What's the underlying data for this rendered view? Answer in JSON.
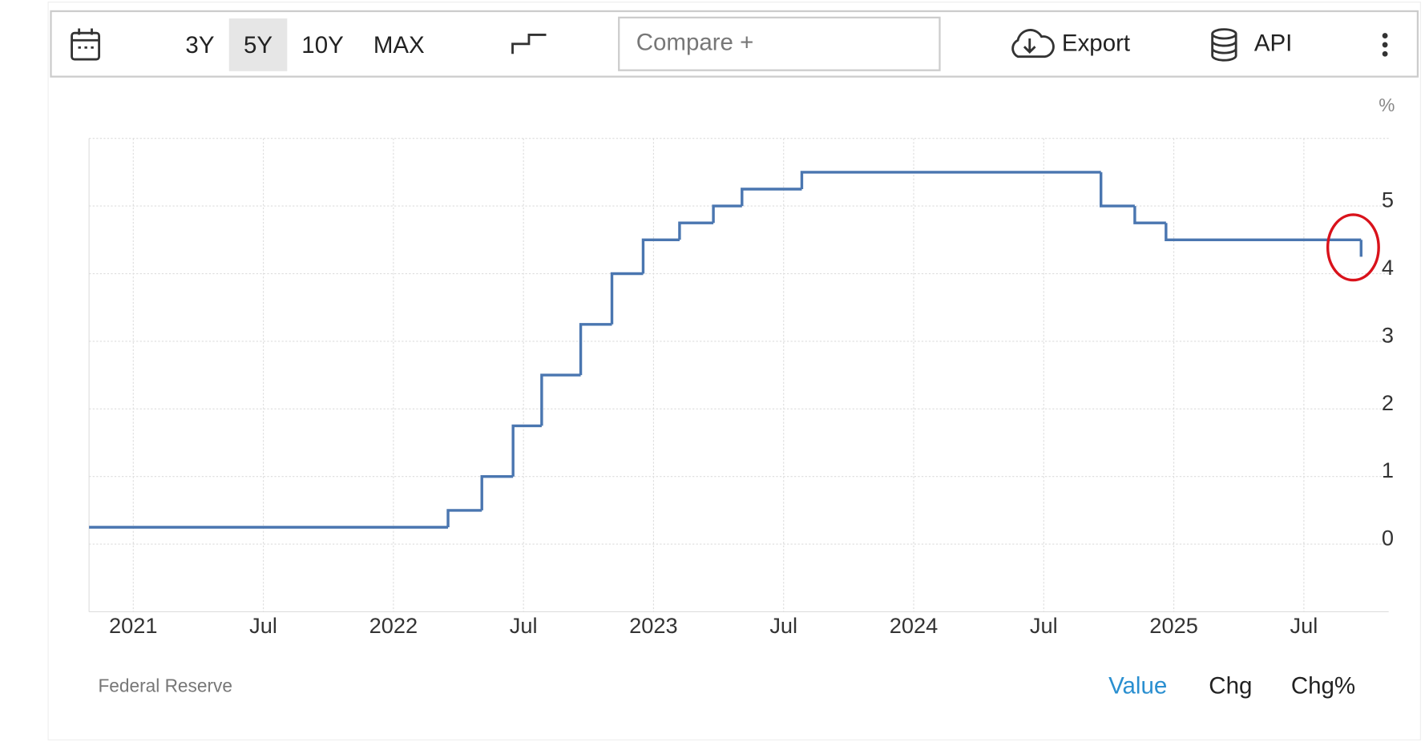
{
  "toolbar": {
    "ranges": [
      "3Y",
      "5Y",
      "10Y",
      "MAX"
    ],
    "compare": "Compare +",
    "export": "Export",
    "api": "API"
  },
  "footer": {
    "source": "Federal Reserve",
    "tabs": [
      "Value",
      "Chg",
      "Chg%"
    ]
  },
  "chart_data": {
    "type": "line",
    "step": true,
    "unit": "%",
    "series": [
      {
        "name": null,
        "color": "#4a76b0",
        "x": [
          2020.83,
          2022.21,
          2022.34,
          2022.46,
          2022.57,
          2022.72,
          2022.84,
          2022.96,
          2023.1,
          2023.23,
          2023.34,
          2023.57,
          2024.72,
          2024.85,
          2024.97,
          2025.72
        ],
        "values": [
          0.25,
          0.5,
          1.0,
          1.75,
          2.5,
          3.25,
          4.0,
          4.5,
          4.75,
          5.0,
          5.25,
          5.5,
          5.0,
          4.75,
          4.5,
          4.25
        ]
      }
    ],
    "xlim": [
      2020.83,
      2025.77
    ],
    "xticks": [
      2021,
      {
        "value": 2021.5,
        "label": "Jul"
      },
      2022,
      {
        "value": 2022.5,
        "label": "Jul"
      },
      2023,
      {
        "value": 2023.5,
        "label": "Jul"
      },
      2024,
      {
        "value": 2024.5,
        "label": "Jul"
      },
      2025,
      {
        "value": 2025.5,
        "label": "Jul"
      }
    ],
    "ylim": [
      -1,
      6
    ],
    "yticks": [
      0,
      1,
      2,
      3,
      4,
      5
    ],
    "grid": true
  }
}
